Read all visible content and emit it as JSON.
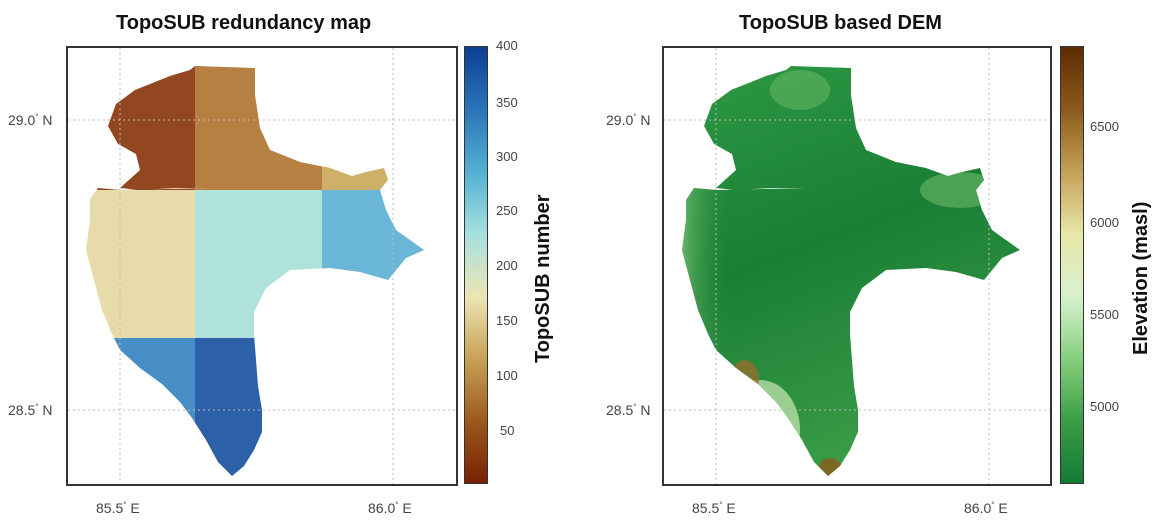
{
  "left_panel": {
    "title": "TopoSUB redundancy map",
    "colorbar_label": "TopoSUB number",
    "colorbar_ticks": [
      "400",
      "350",
      "300",
      "250",
      "200",
      "150",
      "100",
      "50"
    ],
    "colorbar_colors": [
      "#0d3f94",
      "#2a74b8",
      "#53b0d2",
      "#a6e0df",
      "#ece5b4",
      "#c8a257",
      "#9b5a1c",
      "#7a2104"
    ]
  },
  "right_panel": {
    "title": "TopoSUB based DEM",
    "colorbar_label": "Elevation (masl)",
    "colorbar_ticks": [
      "6500",
      "6000",
      "5500",
      "5000"
    ],
    "colorbar_colors": [
      "#5e2c06",
      "#8a5a1a",
      "#c4a156",
      "#e7e7a8",
      "#d8f1cf",
      "#87d07f",
      "#3a9e43",
      "#137a37"
    ]
  },
  "axes": {
    "lat_labels": [
      "29.0",
      "28.5"
    ],
    "lat_suffix": " N",
    "lon_labels": [
      "85.5",
      "86.0"
    ],
    "lon_suffix": " E",
    "degree_symbol": "°"
  },
  "colors": {
    "brown_block": "#b07733",
    "dark_brown": "#8a3a10",
    "tan_block": "#cbaa5d",
    "beige_block": "#e6d9a4",
    "cyan_block": "#a9e0d8",
    "lightblue_block": "#5fb1d5",
    "blue_block": "#2f78b8",
    "darkblue_block": "#1d56a3",
    "dem_green": "#1f8a3a",
    "dem_light": "#a8e0a0",
    "dem_brown": "#9c6a2a"
  }
}
